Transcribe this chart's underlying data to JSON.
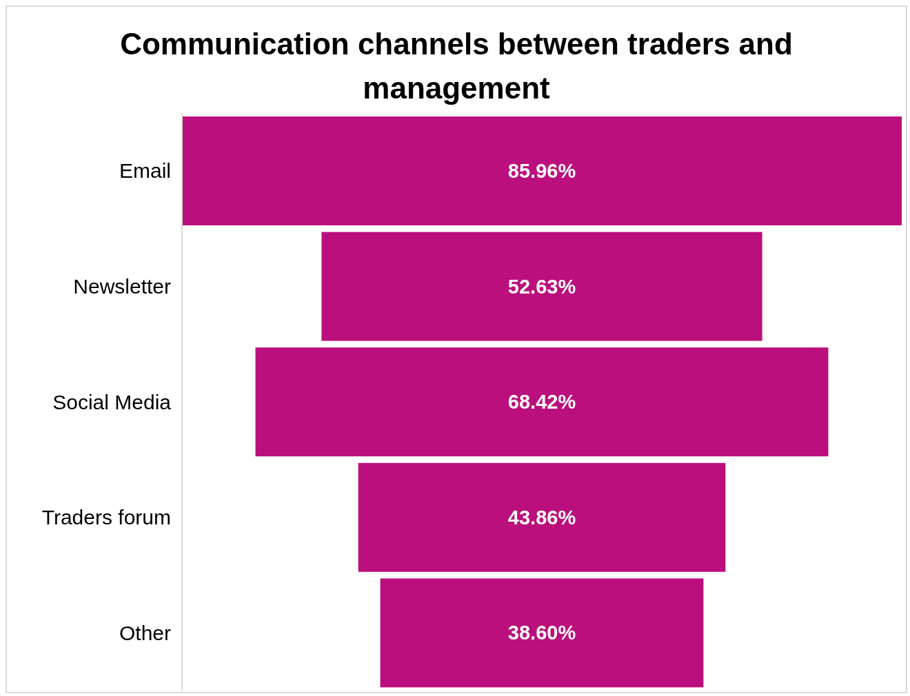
{
  "chart_data": {
    "type": "other",
    "title": "Communication channels between traders and management",
    "categories": [
      "Email",
      "Newsletter",
      "Social Media",
      "Traders forum",
      "Other"
    ],
    "values": [
      85.96,
      52.63,
      68.42,
      43.86,
      38.6
    ],
    "value_labels": [
      "85.96%",
      "52.63%",
      "68.42%",
      "43.86%",
      "38.60%"
    ],
    "color": "#ba0f7c"
  }
}
